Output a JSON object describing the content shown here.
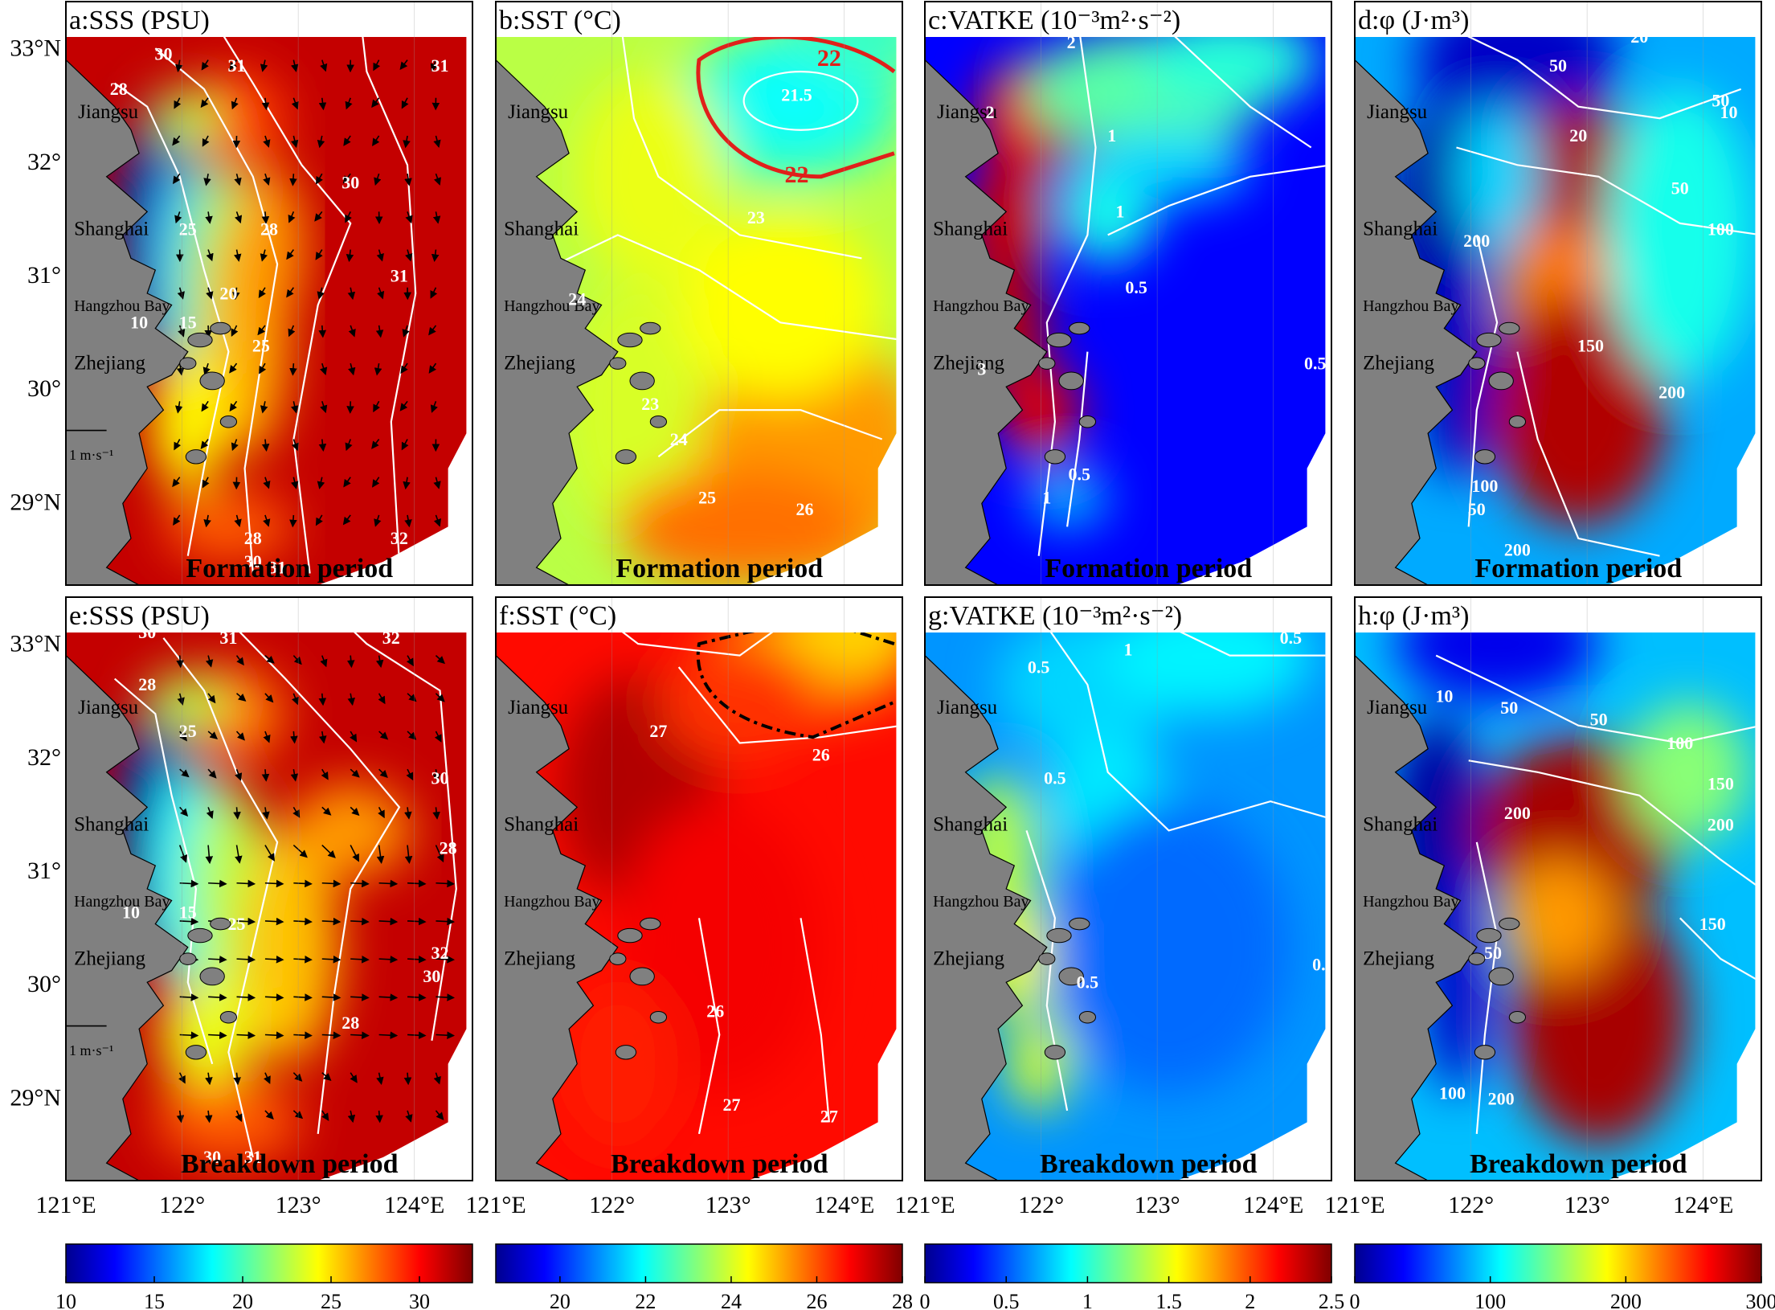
{
  "panels": [
    {
      "title": "a:SSS (PSU)",
      "period": "Formation period",
      "field": "sss_f",
      "contours": [
        "28",
        "30",
        "31",
        "32",
        "31",
        "25",
        "28",
        "30",
        "31",
        "10",
        "15",
        "20",
        "25",
        "28",
        "30",
        "31",
        "32"
      ],
      "places": [
        "Jiangsu",
        "Shanghai",
        "Hangzhou Bay",
        "Zhejiang"
      ],
      "scale": "1 m·s⁻¹"
    },
    {
      "title": "b:SST (°C)",
      "period": "Formation period",
      "field": "sst_f",
      "contours": [
        "23",
        "22",
        "21.5",
        "22",
        "23",
        "24",
        "24",
        "23",
        "25",
        "26"
      ],
      "places": [
        "Jiangsu",
        "Shanghai",
        "Hangzhou Bay",
        "Zhejiang"
      ]
    },
    {
      "title": "c:VATKE (10⁻³m²·s⁻²)",
      "period": "Formation period",
      "field": "vat_f",
      "contours": [
        "2",
        "1",
        "1",
        "1",
        "0.5",
        "2",
        "3",
        "0.5",
        "1",
        "0.5"
      ],
      "places": [
        "Jiangsu",
        "Shanghai",
        "Hangzhou Bay",
        "Zhejiang"
      ]
    },
    {
      "title": "d:φ (J·m³)",
      "period": "Formation period",
      "field": "phi_f",
      "contours": [
        "50",
        "20",
        "20",
        "10",
        "50",
        "50",
        "100",
        "200",
        "150",
        "200",
        "200",
        "50",
        "100"
      ],
      "places": [
        "Jiangsu",
        "Shanghai",
        "Hangzhou Bay",
        "Zhejiang"
      ]
    },
    {
      "title": "e:SSS (PSU)",
      "period": "Breakdown period",
      "field": "sss_b",
      "contours": [
        "30",
        "31",
        "32",
        "31",
        "28",
        "25",
        "30",
        "28",
        "10",
        "15",
        "25",
        "32",
        "30",
        "28",
        "30",
        "31"
      ],
      "places": [
        "Jiangsu",
        "Shanghai",
        "Hangzhou Bay",
        "Zhejiang"
      ],
      "scale": "1 m·s⁻¹"
    },
    {
      "title": "f:SST (°C)",
      "period": "Breakdown period",
      "field": "sst_b",
      "contours": [
        "26",
        "27",
        "26",
        "26",
        "27",
        "27"
      ],
      "places": [
        "Jiangsu",
        "Shanghai",
        "Hangzhou Bay",
        "Zhejiang"
      ]
    },
    {
      "title": "g:VATKE (10⁻³m²·s⁻²)",
      "period": "Breakdown period",
      "field": "vat_b",
      "contours": [
        "0.5",
        "1",
        "0.5",
        "0.5",
        "0.5",
        "0.5"
      ],
      "places": [
        "Jiangsu",
        "Shanghai",
        "Hangzhou Bay",
        "Zhejiang"
      ]
    },
    {
      "title": "h:φ (J·m³)",
      "period": "Breakdown period",
      "field": "phi_b",
      "contours": [
        "10",
        "50",
        "50",
        "100",
        "150",
        "200",
        "200",
        "150",
        "50",
        "100",
        "200"
      ],
      "places": [
        "Jiangsu",
        "Shanghai",
        "Hangzhou Bay",
        "Zhejiang"
      ]
    }
  ],
  "axes": {
    "lat_ticks": [
      "33°N",
      "32°",
      "31°",
      "30°",
      "29°N"
    ],
    "lon_ticks": [
      "121°E",
      "122°",
      "123°",
      "124°E"
    ],
    "lon_range": [
      121,
      124.5
    ],
    "lat_range": [
      28.5,
      33.1
    ]
  },
  "colorbars": [
    {
      "ticks": [
        "10",
        "15",
        "20",
        "25",
        "30"
      ],
      "range": [
        10,
        33
      ]
    },
    {
      "ticks": [
        "20",
        "22",
        "24",
        "26",
        "28"
      ],
      "range": [
        18.5,
        28
      ]
    },
    {
      "ticks": [
        "0",
        "0.5",
        "1",
        "1.5",
        "2",
        "2.5"
      ],
      "range": [
        0,
        2.5
      ]
    },
    {
      "ticks": [
        "0",
        "100",
        "200",
        "300"
      ],
      "range": [
        0,
        300
      ]
    }
  ],
  "colors": {
    "land": "#808080",
    "contour": "#ffffff",
    "sst_contour_22": "#e0201a",
    "sst_contour_dash": "#000000",
    "frame": "#000000"
  }
}
